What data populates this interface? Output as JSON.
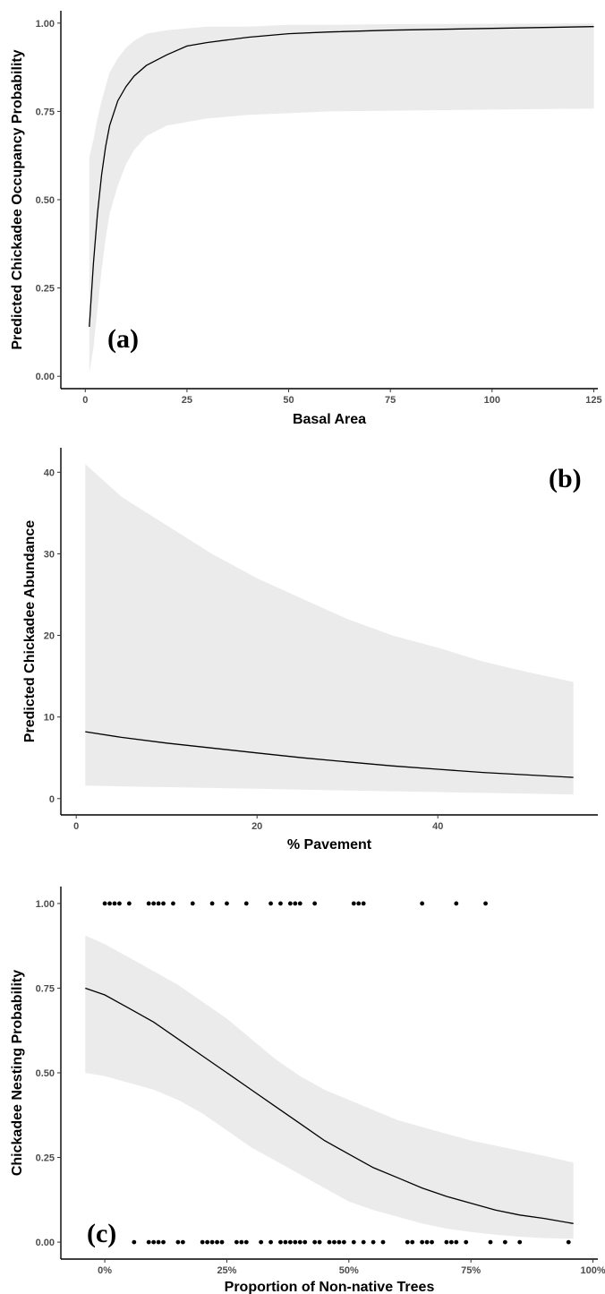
{
  "chart_data": [
    {
      "type": "line",
      "panel_label": "(a)",
      "xlabel": "Basal Area",
      "ylabel": "Predicted Chickadee Occupancy Probability",
      "xlim": [
        -6,
        126
      ],
      "ylim": [
        -0.035,
        1.035
      ],
      "xticks": [
        0,
        25,
        50,
        75,
        100,
        125
      ],
      "xtick_labels": [
        "0",
        "25",
        "50",
        "75",
        "100",
        "125"
      ],
      "yticks": [
        0,
        0.25,
        0.5,
        0.75,
        1.0
      ],
      "ytick_labels": [
        "0.00",
        "0.25",
        "0.50",
        "0.75",
        "1.00"
      ],
      "grid": false,
      "series": [
        {
          "x": [
            1,
            2,
            3,
            4,
            5,
            6,
            8,
            10,
            12,
            15,
            20,
            25,
            30,
            40,
            50,
            60,
            75,
            100,
            125
          ],
          "y": [
            0.14,
            0.32,
            0.46,
            0.57,
            0.65,
            0.71,
            0.78,
            0.82,
            0.85,
            0.88,
            0.91,
            0.935,
            0.945,
            0.96,
            0.97,
            0.975,
            0.98,
            0.985,
            0.99
          ],
          "lower": [
            0.01,
            0.08,
            0.19,
            0.3,
            0.39,
            0.46,
            0.54,
            0.6,
            0.64,
            0.68,
            0.71,
            0.72,
            0.73,
            0.74,
            0.745,
            0.75,
            0.752,
            0.755,
            0.758
          ],
          "upper": [
            0.62,
            0.67,
            0.73,
            0.78,
            0.82,
            0.86,
            0.9,
            0.93,
            0.95,
            0.97,
            0.98,
            0.985,
            0.99,
            0.99,
            0.995,
            0.995,
            0.997,
            0.998,
            0.999
          ]
        }
      ]
    },
    {
      "type": "line",
      "panel_label": "(b)",
      "xlabel": "% Pavement",
      "ylabel": "Predicted Chickadee Abundance",
      "xlim": [
        -1.7,
        57.7
      ],
      "ylim": [
        -2,
        43
      ],
      "xticks": [
        0,
        20,
        40
      ],
      "xtick_labels": [
        "0",
        "20",
        "40"
      ],
      "yticks": [
        0,
        10,
        20,
        30,
        40
      ],
      "ytick_labels": [
        "0",
        "10",
        "20",
        "30",
        "40"
      ],
      "grid": false,
      "series": [
        {
          "x": [
            1,
            5,
            10,
            15,
            20,
            25,
            30,
            35,
            40,
            45,
            50,
            55
          ],
          "y": [
            8.2,
            7.5,
            6.8,
            6.2,
            5.6,
            5.0,
            4.5,
            4.0,
            3.6,
            3.2,
            2.9,
            2.6
          ],
          "lower": [
            1.6,
            1.5,
            1.4,
            1.3,
            1.2,
            1.1,
            1.0,
            0.9,
            0.8,
            0.7,
            0.6,
            0.5
          ],
          "upper": [
            41,
            37,
            33.5,
            30,
            27,
            24.5,
            22,
            20,
            18.5,
            16.8,
            15.5,
            14.3
          ]
        }
      ]
    },
    {
      "type": "line",
      "panel_label": "(c)",
      "xlabel": "Proportion of Non-native Trees",
      "ylabel": "Chickadee Nesting Probability",
      "xlim": [
        -0.09,
        1.01
      ],
      "ylim": [
        -0.05,
        1.05
      ],
      "xticks": [
        0,
        0.25,
        0.5,
        0.75,
        1.0
      ],
      "xtick_labels": [
        "0%",
        "25%",
        "50%",
        "75%",
        "100%"
      ],
      "yticks": [
        0,
        0.25,
        0.5,
        0.75,
        1.0
      ],
      "ytick_labels": [
        "0.00",
        "0.25",
        "0.50",
        "0.75",
        "1.00"
      ],
      "grid": false,
      "series": [
        {
          "x": [
            -0.04,
            0.0,
            0.05,
            0.1,
            0.15,
            0.2,
            0.25,
            0.3,
            0.35,
            0.4,
            0.45,
            0.5,
            0.55,
            0.6,
            0.65,
            0.7,
            0.75,
            0.8,
            0.85,
            0.9,
            0.96
          ],
          "y": [
            0.75,
            0.73,
            0.69,
            0.65,
            0.6,
            0.55,
            0.5,
            0.45,
            0.4,
            0.35,
            0.3,
            0.26,
            0.22,
            0.19,
            0.16,
            0.135,
            0.115,
            0.095,
            0.08,
            0.07,
            0.055
          ],
          "lower": [
            0.5,
            0.49,
            0.47,
            0.45,
            0.42,
            0.38,
            0.33,
            0.28,
            0.24,
            0.2,
            0.16,
            0.12,
            0.095,
            0.075,
            0.055,
            0.04,
            0.03,
            0.022,
            0.016,
            0.012,
            0.01
          ],
          "upper": [
            0.905,
            0.88,
            0.84,
            0.8,
            0.76,
            0.71,
            0.66,
            0.6,
            0.54,
            0.49,
            0.45,
            0.42,
            0.39,
            0.36,
            0.34,
            0.32,
            0.3,
            0.285,
            0.27,
            0.255,
            0.235
          ]
        }
      ],
      "points_y1": [
        0.0,
        0.01,
        0.02,
        0.03,
        0.05,
        0.09,
        0.1,
        0.11,
        0.12,
        0.14,
        0.18,
        0.22,
        0.25,
        0.29,
        0.34,
        0.36,
        0.38,
        0.39,
        0.4,
        0.43,
        0.51,
        0.52,
        0.53,
        0.65,
        0.72,
        0.78
      ],
      "points_y0": [
        0.06,
        0.09,
        0.1,
        0.11,
        0.12,
        0.15,
        0.16,
        0.2,
        0.21,
        0.22,
        0.23,
        0.24,
        0.27,
        0.28,
        0.29,
        0.32,
        0.34,
        0.36,
        0.37,
        0.38,
        0.39,
        0.4,
        0.41,
        0.43,
        0.44,
        0.46,
        0.47,
        0.48,
        0.49,
        0.51,
        0.53,
        0.55,
        0.57,
        0.62,
        0.63,
        0.65,
        0.66,
        0.67,
        0.7,
        0.71,
        0.72,
        0.74,
        0.79,
        0.82,
        0.85,
        0.95
      ]
    }
  ]
}
